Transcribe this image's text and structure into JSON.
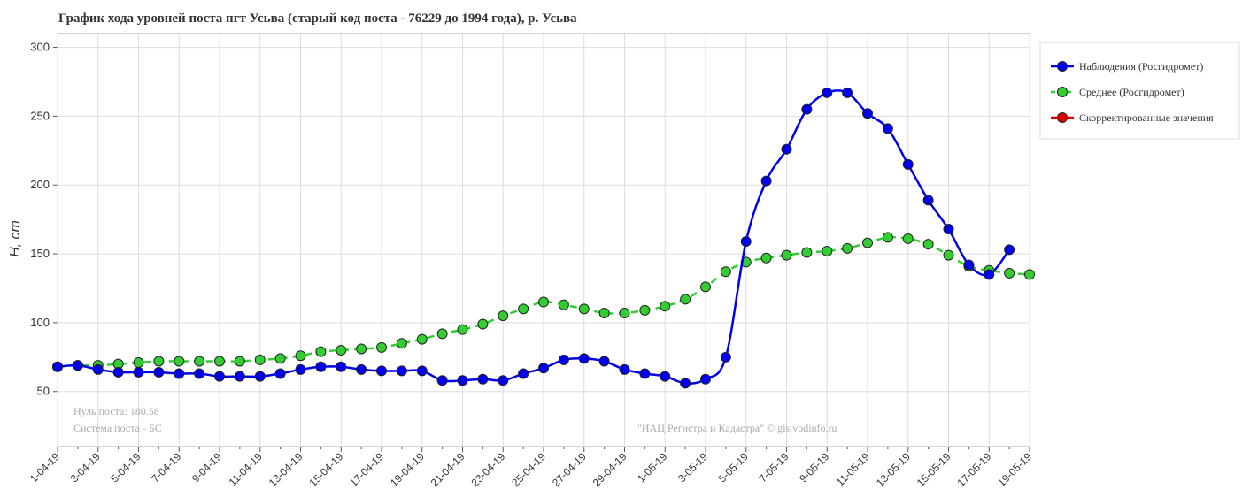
{
  "chart_data": {
    "type": "line",
    "title": "График хода уровней поста пгт Усьва (старый  код поста - 76229 до 1994 года), р. Усьва",
    "ylabel": "H, cm",
    "categories": [
      "1-04-19",
      null,
      "3-04-19",
      null,
      "5-04-19",
      null,
      "7-04-19",
      null,
      "9-04-19",
      null,
      "11-04-19",
      null,
      "13-04-19",
      null,
      "15-04-19",
      null,
      "17-04-19",
      null,
      "19-04-19",
      null,
      "21-04-19",
      null,
      "23-04-19",
      null,
      "25-04-19",
      null,
      "27-04-19",
      null,
      "29-04-19",
      null,
      "1-05-19",
      null,
      "3-05-19",
      null,
      "5-05-19",
      null,
      "7-05-19",
      null,
      "9-05-19",
      null,
      "11-05-19",
      null,
      "13-05-19",
      null,
      "15-05-19",
      null,
      "17-05-19",
      null,
      "19-05-19"
    ],
    "series": [
      {
        "name": "Наблюдения (Росгидромет)",
        "color": "#0000ee",
        "dash": false,
        "values": [
          68,
          69,
          66,
          64,
          64,
          64,
          63,
          63,
          61,
          61,
          61,
          63,
          66,
          68,
          68,
          66,
          65,
          65,
          65,
          58,
          58,
          59,
          58,
          63,
          67,
          73,
          74,
          72,
          66,
          63,
          61,
          56,
          59,
          75,
          159,
          203,
          226,
          255,
          267,
          267,
          252,
          241,
          215,
          189,
          168,
          142,
          135,
          153,
          null
        ]
      },
      {
        "name": "Среднее (Росгидромет)",
        "color": "#33cc33",
        "dash": true,
        "values": [
          68,
          69,
          69,
          70,
          71,
          72,
          72,
          72,
          72,
          72,
          73,
          74,
          76,
          79,
          80,
          81,
          82,
          85,
          88,
          92,
          95,
          99,
          105,
          110,
          115,
          113,
          110,
          107,
          107,
          109,
          112,
          117,
          126,
          137,
          144,
          147,
          149,
          151,
          152,
          154,
          158,
          162,
          161,
          157,
          149,
          141,
          138,
          136,
          135
        ]
      },
      {
        "name": "Скорректированные значения",
        "color": "#dd0000",
        "dash": false,
        "values": [
          null,
          null,
          null,
          null,
          null,
          null,
          null,
          null,
          null,
          null,
          null,
          null,
          null,
          null,
          null,
          null,
          null,
          null,
          null,
          null,
          null,
          null,
          null,
          null,
          null,
          null,
          null,
          null,
          null,
          null,
          null,
          null,
          null,
          null,
          null,
          null,
          null,
          null,
          null,
          null,
          null,
          null,
          null,
          null,
          null,
          null,
          null,
          null,
          null
        ]
      }
    ],
    "ylim": [
      10,
      310
    ],
    "yticks": [
      50,
      100,
      150,
      200,
      250,
      300
    ],
    "grid": true,
    "annotations": [
      "Нуль поста: 180.58",
      "Система поста - БС",
      "\"ИАЦ Регистра и Кадастра\" © gis.vodinfo.ru"
    ]
  }
}
